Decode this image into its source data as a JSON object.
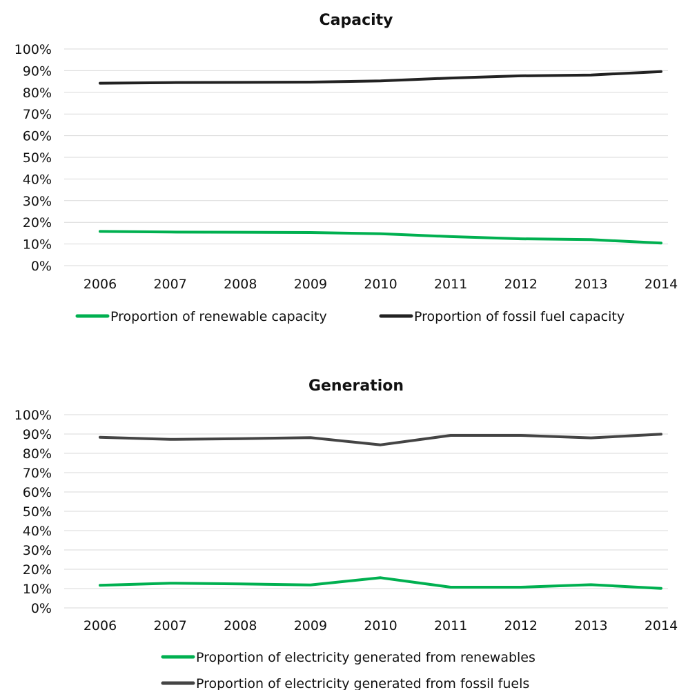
{
  "chart_data": [
    {
      "type": "line",
      "title": "Capacity",
      "xlabel": "",
      "ylabel": "",
      "categories": [
        "2006",
        "2007",
        "2008",
        "2009",
        "2010",
        "2011",
        "2012",
        "2013",
        "2014"
      ],
      "y_ticks": [
        "0%",
        "10%",
        "20%",
        "30%",
        "40%",
        "50%",
        "60%",
        "70%",
        "80%",
        "90%",
        "100%"
      ],
      "ylim": [
        0,
        100
      ],
      "grid": true,
      "legend_position": "bottom",
      "series": [
        {
          "name": "Proportion of renewable capacity",
          "color": "#00b050",
          "values": [
            15.8,
            15.5,
            15.4,
            15.3,
            14.7,
            13.4,
            12.4,
            12.0,
            10.4
          ]
        },
        {
          "name": "Proportion of fossil fuel capacity",
          "color": "#222222",
          "values": [
            84.2,
            84.5,
            84.6,
            84.7,
            85.3,
            86.6,
            87.6,
            88.0,
            89.6
          ]
        }
      ]
    },
    {
      "type": "line",
      "title": "Generation",
      "xlabel": "",
      "ylabel": "",
      "categories": [
        "2006",
        "2007",
        "2008",
        "2009",
        "2010",
        "2011",
        "2012",
        "2013",
        "2014"
      ],
      "y_ticks": [
        "0%",
        "10%",
        "20%",
        "30%",
        "40%",
        "50%",
        "60%",
        "70%",
        "80%",
        "90%",
        "100%"
      ],
      "ylim": [
        0,
        100
      ],
      "grid": true,
      "legend_position": "bottom",
      "series": [
        {
          "name": "Proportion of electricity generated from renewables",
          "color": "#00b050",
          "values": [
            11.7,
            12.8,
            12.4,
            11.9,
            15.6,
            10.7,
            10.7,
            12.0,
            10.1
          ]
        },
        {
          "name": "Proportion of electricity generated from fossil fuels",
          "color": "#444444",
          "values": [
            88.3,
            87.2,
            87.6,
            88.1,
            84.4,
            89.3,
            89.3,
            88.0,
            89.9
          ]
        }
      ]
    }
  ]
}
